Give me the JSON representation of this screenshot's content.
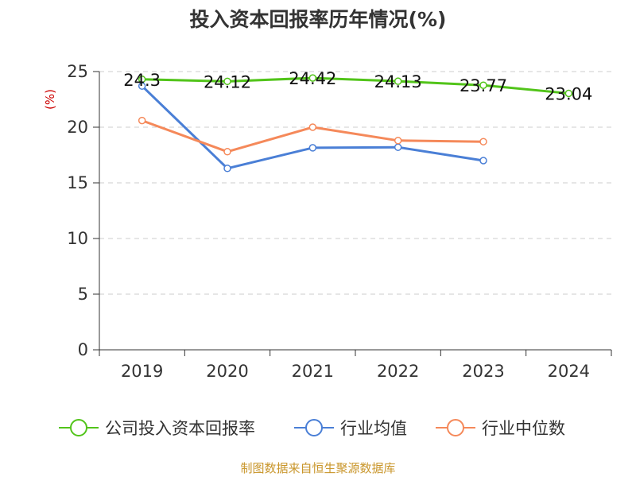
{
  "chart_data": {
    "type": "line",
    "title": "投入资本回报率历年情况(%)",
    "ylabel": "(%)",
    "xlabel": "",
    "categories": [
      "2019",
      "2020",
      "2021",
      "2022",
      "2023",
      "2024"
    ],
    "ylim": [
      0,
      25
    ],
    "yticks": [
      0,
      5,
      10,
      15,
      20,
      25
    ],
    "grid": true,
    "legend_position": "bottom",
    "series": [
      {
        "name": "公司投入资本回报率",
        "color": "#52c41a",
        "values": [
          24.3,
          24.12,
          24.42,
          24.13,
          23.77,
          23.04
        ],
        "labels": [
          "24.3",
          "24.12",
          "24.42",
          "24.13",
          "23.77",
          "23.04"
        ]
      },
      {
        "name": "行业均值",
        "color": "#4a7fd6",
        "values": [
          23.7,
          16.3,
          18.15,
          18.2,
          17.0,
          null
        ]
      },
      {
        "name": "行业中位数",
        "color": "#f5895a",
        "values": [
          20.6,
          17.8,
          20.0,
          18.8,
          18.7,
          null
        ]
      }
    ]
  },
  "source": "制图数据来自恒生聚源数据库"
}
